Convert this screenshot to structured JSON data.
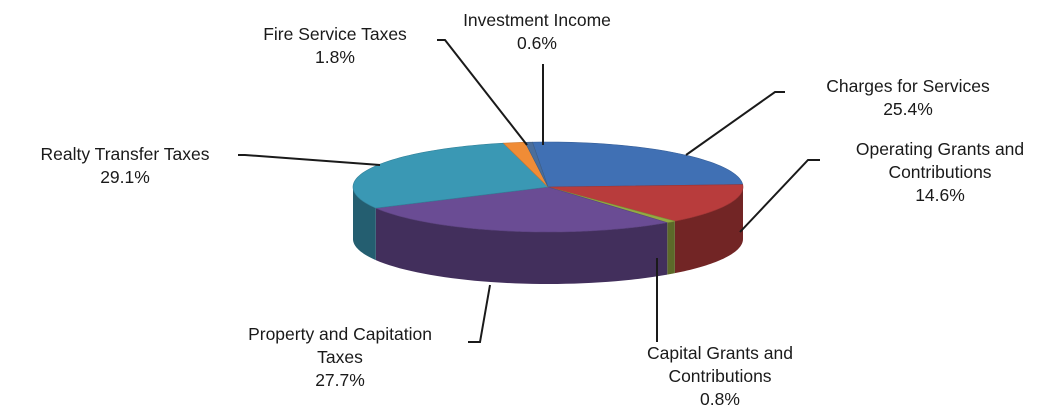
{
  "chart_data": {
    "type": "pie",
    "style": "3d-pie",
    "title": "",
    "slices": [
      {
        "name": "Charges for Services",
        "label_lines": [
          "Charges for Services"
        ],
        "value": 25.4,
        "display": "25.4%",
        "color": "#4070b4"
      },
      {
        "name": "Operating Grants and Contributions",
        "label_lines": [
          "Operating Grants and",
          "Contributions"
        ],
        "value": 14.6,
        "display": "14.6%",
        "color": "#b83c3c"
      },
      {
        "name": "Capital Grants and Contributions",
        "label_lines": [
          "Capital Grants and",
          "Contributions"
        ],
        "value": 0.8,
        "display": "0.8%",
        "color": "#94aa42"
      },
      {
        "name": "Property and Capitation Taxes",
        "label_lines": [
          "Property and Capitation",
          "Taxes"
        ],
        "value": 27.7,
        "display": "27.7%",
        "color": "#6a4c94"
      },
      {
        "name": "Realty Transfer Taxes",
        "label_lines": [
          "Realty Transfer Taxes"
        ],
        "value": 29.1,
        "display": "29.1%",
        "color": "#3a98b4"
      },
      {
        "name": "Fire Service Taxes",
        "label_lines": [
          "Fire Service Taxes"
        ],
        "value": 1.8,
        "display": "1.8%",
        "color": "#f08c36"
      },
      {
        "name": "Investment Income",
        "label_lines": [
          "Investment Income"
        ],
        "value": 0.6,
        "display": "0.6%",
        "color": "#4a6e9c"
      }
    ]
  }
}
